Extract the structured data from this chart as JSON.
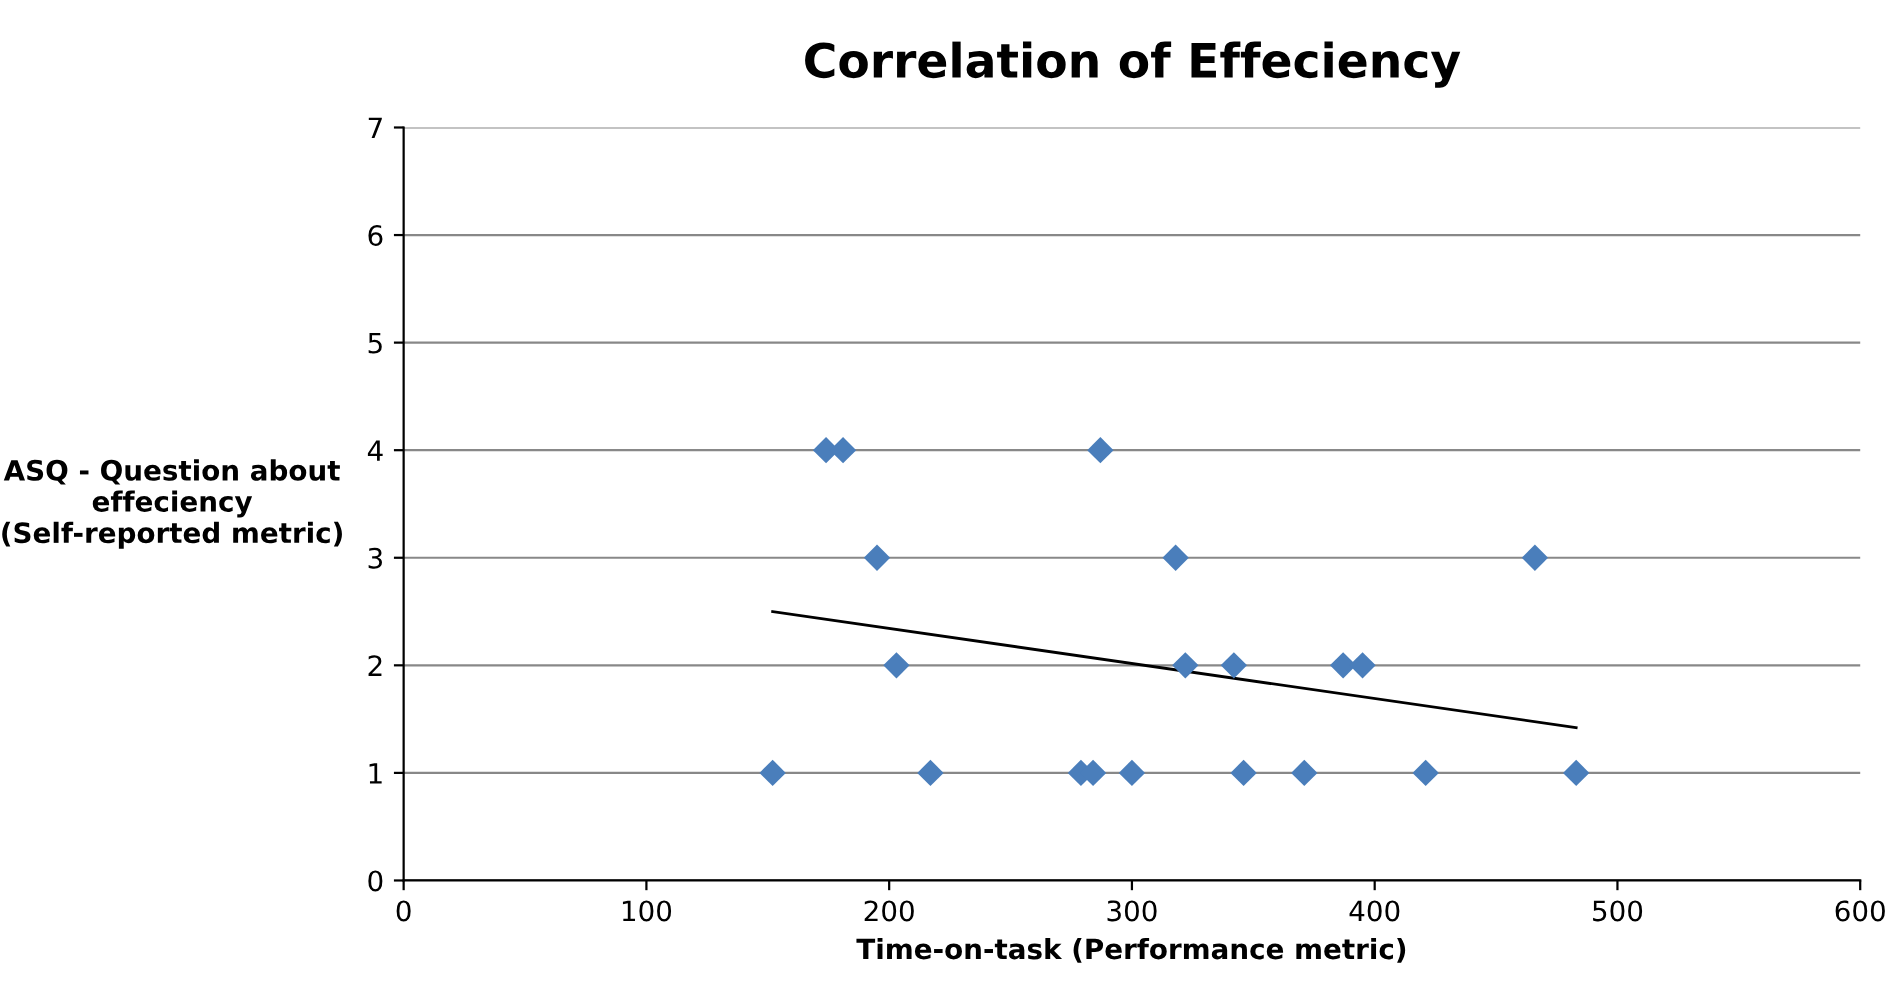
{
  "chart_data": {
    "type": "scatter",
    "title": "Correlation of Effeciency",
    "xlabel": "Time-on-task (Performance metric)",
    "ylabel": "ASQ - Question about\neffeciency\n(Self-reported metric)",
    "xlim": [
      0,
      600
    ],
    "xticks": [
      0,
      100,
      200,
      300,
      400,
      500,
      600
    ],
    "ylim": [
      0,
      7
    ],
    "yticks": [
      0,
      1,
      2,
      3,
      4,
      5,
      6,
      7
    ],
    "grid": "y",
    "marker": "diamond",
    "legend": false,
    "series": [
      {
        "color": "#4a7ebb",
        "x": [
          174,
          181,
          287,
          195,
          318,
          466,
          203,
          322,
          342,
          387,
          395,
          152,
          217,
          279,
          284,
          300,
          346,
          371,
          421,
          483
        ],
        "values": [
          4,
          4,
          4,
          3,
          3,
          3,
          2,
          2,
          2,
          2,
          2,
          1,
          1,
          1,
          1,
          1,
          1,
          1,
          1,
          1
        ]
      },
      {
        "type": "line",
        "color": "#000000",
        "marker": "none",
        "line_style": "solid",
        "x": [
          152,
          483
        ],
        "values": [
          2.5,
          1.42
        ]
      }
    ]
  }
}
